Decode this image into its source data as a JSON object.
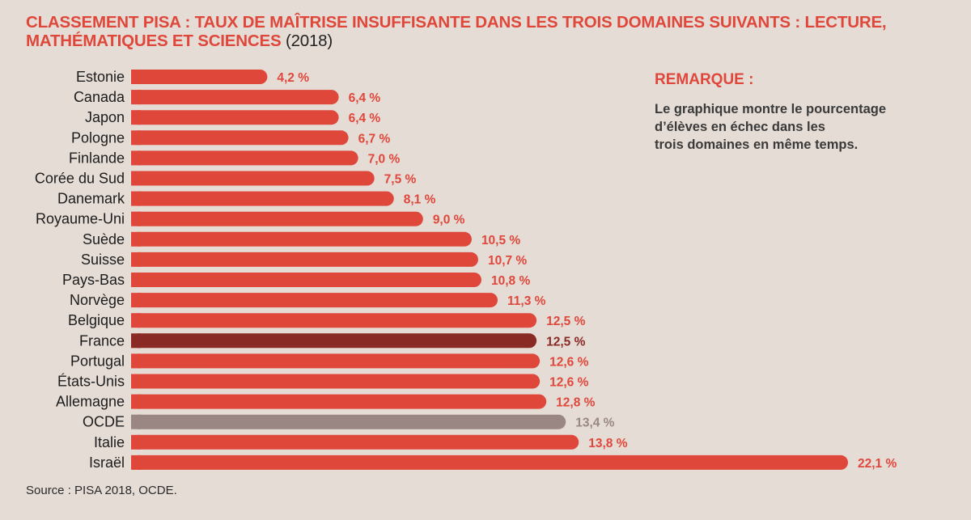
{
  "title": {
    "main": "CLASSEMENT PISA : TAUX DE MAÎTRISE INSUFFISANTE DANS LES TROIS DOMAINES SUIVANTS : LECTURE, MATHÉMATIQUES ET SCIENCES",
    "year": "(2018)"
  },
  "note": {
    "title": "REMARQUE :",
    "lines": [
      "Le graphique montre le pourcentage",
      "d’élèves en échec dans les",
      "trois domaines en même temps."
    ]
  },
  "source": "Source : PISA 2018, OCDE.",
  "colors": {
    "default": "#e0473b",
    "highlight": "#8a2a24",
    "average": "#9a8784",
    "background": "#e5dcd6"
  },
  "chart_data": {
    "type": "bar",
    "orientation": "horizontal",
    "unit": "%",
    "categories": [
      "Estonie",
      "Canada",
      "Japon",
      "Pologne",
      "Finlande",
      "Corée du Sud",
      "Danemark",
      "Royaume-Uni",
      "Suède",
      "Suisse",
      "Pays-Bas",
      "Norvège",
      "Belgique",
      "France",
      "Portugal",
      "États-Unis",
      "Allemagne",
      "OCDE",
      "Italie",
      "Israël"
    ],
    "values": [
      4.2,
      6.4,
      6.4,
      6.7,
      7.0,
      7.5,
      8.1,
      9.0,
      10.5,
      10.7,
      10.8,
      11.3,
      12.5,
      12.5,
      12.6,
      12.6,
      12.8,
      13.4,
      13.8,
      22.1
    ],
    "value_labels": [
      "4,2 %",
      "6,4 %",
      "6,4 %",
      "6,7 %",
      "7,0 %",
      "7,5 %",
      "8,1 %",
      "9,0 %",
      "10,5 %",
      "10,7 %",
      "10,8 %",
      "11,3 %",
      "12,5 %",
      "12,5 %",
      "12,6 %",
      "12,6 %",
      "12,8 %",
      "13,4 %",
      "13,8 %",
      "22,1 %"
    ],
    "highlight": {
      "France": "highlight",
      "OCDE": "average"
    },
    "xlim": [
      0,
      22.1
    ],
    "grid": false,
    "legend": "none"
  }
}
